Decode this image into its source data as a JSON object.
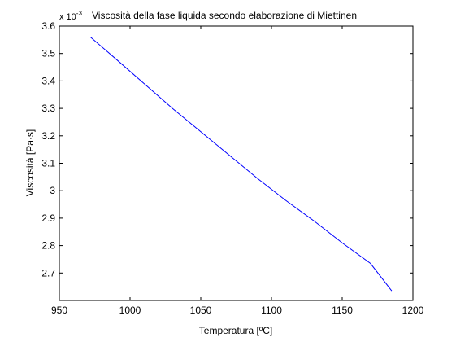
{
  "chart_data": {
    "type": "line",
    "title": "Viscosità della fase liquida secondo elaborazione di Miettinen",
    "xlabel": "Temperatura [ºC]",
    "ylabel": "Viscosità [Pa·s]",
    "y_multiplier_label": "x 10",
    "y_multiplier_exponent": "-3",
    "xlim": [
      950,
      1200
    ],
    "ylim": [
      2.6,
      3.6
    ],
    "xticks": [
      "950",
      "1000",
      "1050",
      "1100",
      "1150",
      "1200"
    ],
    "yticks": [
      "2.7",
      "2.8",
      "2.9",
      "3",
      "3.1",
      "3.2",
      "3.3",
      "3.4",
      "3.5",
      "3.6"
    ],
    "grid": false,
    "line_color": "#0000ff",
    "series": [
      {
        "x": [
          972,
          990,
          1010,
          1030,
          1050,
          1070,
          1090,
          1110,
          1130,
          1150,
          1170,
          1185
        ],
        "y": [
          3.56,
          3.48,
          3.39,
          3.3,
          3.215,
          3.13,
          3.045,
          2.965,
          2.89,
          2.81,
          2.735,
          2.635
        ]
      }
    ]
  }
}
